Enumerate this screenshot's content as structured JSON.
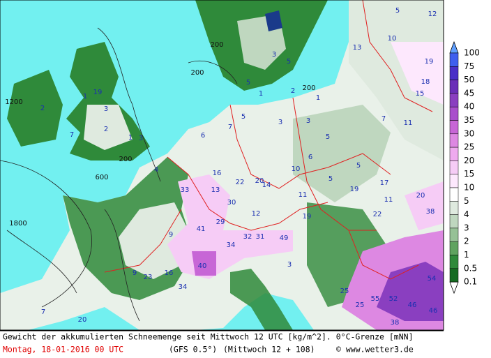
{
  "map": {
    "legend": [
      {
        "value": 100,
        "color": "#5f9fff"
      },
      {
        "value": 75,
        "color": "#3f5fee"
      },
      {
        "value": 50,
        "color": "#4a2fc8"
      },
      {
        "value": 45,
        "color": "#6a2fb8"
      },
      {
        "value": 40,
        "color": "#8a3fc0"
      },
      {
        "value": 35,
        "color": "#a94fcc"
      },
      {
        "value": 30,
        "color": "#c766d6"
      },
      {
        "value": 25,
        "color": "#dd88e2"
      },
      {
        "value": 20,
        "color": "#eeaaee"
      },
      {
        "value": 15,
        "color": "#f6ccf6"
      },
      {
        "value": 10,
        "color": "#fde8fd"
      },
      {
        "value": 5,
        "color": "#ffffff"
      },
      {
        "value": 4,
        "color": "#dfeadf"
      },
      {
        "value": 3,
        "color": "#bfd7bf"
      },
      {
        "value": 2,
        "color": "#96c196"
      },
      {
        "value": 1,
        "color": "#5fa35f"
      },
      {
        "value": 0.5,
        "color": "#2f8a3a"
      },
      {
        "value": 0.1,
        "color": "#156b22"
      }
    ],
    "labels": [
      "12",
      "5",
      "10",
      "19",
      "18",
      "15",
      "13",
      "7",
      "11",
      "5",
      "17",
      "20",
      "38",
      "22",
      "19",
      "11",
      "16",
      "20",
      "22",
      "14",
      "13",
      "33",
      "30",
      "12",
      "29",
      "41",
      "32",
      "31",
      "49",
      "34",
      "40",
      "16",
      "9",
      "23",
      "34",
      "25",
      "55",
      "52",
      "46",
      "54",
      "25",
      "38",
      "46",
      "2",
      "19",
      "3",
      "2",
      "1",
      "3",
      "7",
      "1",
      "6",
      "7",
      "5",
      "3",
      "3",
      "6",
      "10",
      "5",
      "5",
      "9",
      "11",
      "19",
      "200",
      "200",
      "1200",
      "1800",
      "600",
      "200",
      "5",
      "3",
      "2",
      "1",
      "200",
      "5",
      "1",
      "4",
      "3",
      "7",
      "20"
    ],
    "footer": {
      "caption": "Gewicht der akkumulierten Schneemenge seit Mittwoch 12 UTC [kg/m^2]. 0°C-Grenze [mNN]",
      "date": "Montag, 18-01-2016  00 UTC",
      "model": "(GFS 0.5°)",
      "run": "(Mittwoch 12 + 108)",
      "credit": "© www.wetter3.de"
    }
  }
}
